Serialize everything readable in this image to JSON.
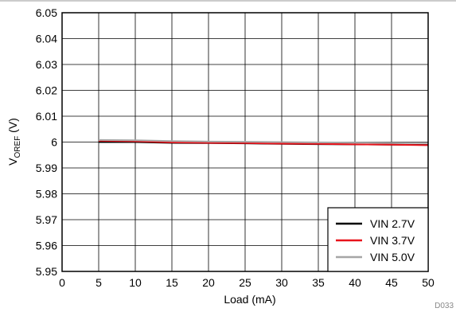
{
  "chart_data": {
    "type": "line",
    "xlabel": "Load (mA)",
    "ylabel_main": "V",
    "ylabel_sub": "OREF",
    "ylabel_unit": " (V)",
    "xlim": [
      0,
      50
    ],
    "ylim": [
      5.95,
      6.05
    ],
    "x_ticks": [
      0,
      5,
      10,
      15,
      20,
      25,
      30,
      35,
      40,
      45,
      50
    ],
    "y_ticks": [
      5.95,
      5.96,
      5.97,
      5.98,
      5.99,
      6,
      6.01,
      6.02,
      6.03,
      6.04,
      6.05
    ],
    "y_tick_labels": [
      "5.95",
      "5.96",
      "5.97",
      "5.98",
      "5.99",
      "6",
      "6.01",
      "6.02",
      "6.03",
      "6.04",
      "6.05"
    ],
    "x_tick_labels": [
      "0",
      "5",
      "10",
      "15",
      "20",
      "25",
      "30",
      "35",
      "40",
      "45",
      "50"
    ],
    "grid": true,
    "legend_position": "bottom-right",
    "code_label": "D033",
    "series": [
      {
        "name": "VIN 2.7V",
        "color": "#000000",
        "x": [
          5,
          10,
          15,
          20,
          25,
          30,
          35,
          40,
          45,
          50
        ],
        "y": [
          6.0,
          6.0,
          5.9997,
          5.9996,
          5.9995,
          5.9993,
          5.9992,
          5.9991,
          5.999,
          5.9989
        ]
      },
      {
        "name": "VIN 3.7V",
        "color": "#e8141c",
        "x": [
          5,
          10,
          15,
          20,
          25,
          30,
          35,
          40,
          45,
          50
        ],
        "y": [
          6.0005,
          6.0003,
          5.9999,
          5.9997,
          5.9996,
          5.9994,
          5.9993,
          5.9991,
          5.999,
          5.9988
        ]
      },
      {
        "name": "VIN 5.0V",
        "color": "#a6a6a6",
        "x": [
          5,
          10,
          15,
          20,
          25,
          30,
          35,
          40,
          45,
          50
        ],
        "y": [
          6.0008,
          6.0007,
          6.0004,
          6.0002,
          6.0001,
          6.0,
          5.9999,
          5.9998,
          5.9997,
          5.9996
        ]
      }
    ]
  }
}
